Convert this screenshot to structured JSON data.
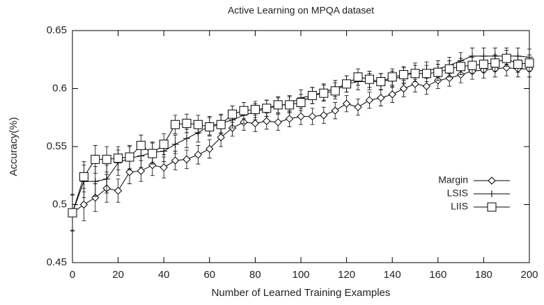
{
  "chart_data": {
    "type": "line",
    "title": "Active Learning on MPQA dataset",
    "x_label": "Number of Learned Training Examples",
    "y_label": "Accuracy(%)",
    "x": [
      0,
      5,
      10,
      15,
      20,
      25,
      30,
      35,
      40,
      45,
      50,
      55,
      60,
      65,
      70,
      75,
      80,
      85,
      90,
      95,
      100,
      105,
      110,
      115,
      120,
      125,
      130,
      135,
      140,
      145,
      150,
      155,
      160,
      165,
      170,
      175,
      180,
      185,
      190,
      195,
      200
    ],
    "xlim": [
      0,
      200
    ],
    "xticks": [
      0,
      20,
      40,
      60,
      80,
      100,
      120,
      140,
      160,
      180,
      200
    ],
    "ylim": [
      0.45,
      0.65
    ],
    "yticks": [
      0.45,
      0.5,
      0.55,
      0.6,
      0.65
    ],
    "legend": "lower right",
    "series": [
      {
        "name": "Margin",
        "color": "#000000",
        "marker": "diamond",
        "values": [
          0.493,
          0.5,
          0.506,
          0.514,
          0.512,
          0.528,
          0.529,
          0.534,
          0.532,
          0.538,
          0.539,
          0.543,
          0.548,
          0.558,
          0.566,
          0.571,
          0.57,
          0.572,
          0.571,
          0.574,
          0.576,
          0.576,
          0.577,
          0.581,
          0.587,
          0.584,
          0.59,
          0.592,
          0.595,
          0.6,
          0.604,
          0.602,
          0.607,
          0.609,
          0.612,
          0.615,
          0.616,
          0.617,
          0.618,
          0.617,
          0.617
        ],
        "errors": [
          0.015,
          0.014,
          0.012,
          0.012,
          0.01,
          0.01,
          0.009,
          0.009,
          0.009,
          0.008,
          0.008,
          0.008,
          0.008,
          0.008,
          0.007,
          0.007,
          0.007,
          0.007,
          0.007,
          0.007,
          0.007,
          0.007,
          0.007,
          0.007,
          0.007,
          0.007,
          0.007,
          0.007,
          0.007,
          0.007,
          0.007,
          0.007,
          0.007,
          0.007,
          0.007,
          0.007,
          0.007,
          0.007,
          0.007,
          0.007,
          0.007
        ]
      },
      {
        "name": "LSIS",
        "color": "#000000",
        "marker": "plus",
        "values": [
          0.493,
          0.52,
          0.52,
          0.522,
          0.536,
          0.54,
          0.542,
          0.545,
          0.546,
          0.552,
          0.557,
          0.562,
          0.568,
          0.57,
          0.573,
          0.577,
          0.58,
          0.583,
          0.585,
          0.587,
          0.592,
          0.594,
          0.597,
          0.6,
          0.604,
          0.606,
          0.606,
          0.606,
          0.608,
          0.611,
          0.615,
          0.616,
          0.617,
          0.62,
          0.624,
          0.628,
          0.628,
          0.628,
          0.628,
          0.628,
          0.627
        ],
        "errors": [
          0.016,
          0.014,
          0.013,
          0.012,
          0.011,
          0.01,
          0.01,
          0.009,
          0.009,
          0.008,
          0.008,
          0.008,
          0.008,
          0.008,
          0.007,
          0.007,
          0.007,
          0.007,
          0.007,
          0.007,
          0.007,
          0.007,
          0.007,
          0.007,
          0.007,
          0.007,
          0.007,
          0.007,
          0.007,
          0.007,
          0.007,
          0.007,
          0.007,
          0.007,
          0.007,
          0.007,
          0.007,
          0.007,
          0.007,
          0.007,
          0.007
        ]
      },
      {
        "name": "LIIS",
        "color": "#000000",
        "marker": "square",
        "values": [
          0.493,
          0.524,
          0.539,
          0.539,
          0.54,
          0.541,
          0.551,
          0.544,
          0.552,
          0.569,
          0.57,
          0.569,
          0.567,
          0.569,
          0.578,
          0.581,
          0.582,
          0.583,
          0.586,
          0.586,
          0.588,
          0.594,
          0.596,
          0.598,
          0.604,
          0.61,
          0.608,
          0.606,
          0.61,
          0.612,
          0.613,
          0.613,
          0.614,
          0.617,
          0.619,
          0.62,
          0.621,
          0.622,
          0.626,
          0.621,
          0.622
        ],
        "errors": [
          0.015,
          0.013,
          0.012,
          0.011,
          0.01,
          0.01,
          0.009,
          0.009,
          0.009,
          0.008,
          0.008,
          0.008,
          0.008,
          0.008,
          0.007,
          0.007,
          0.007,
          0.007,
          0.007,
          0.007,
          0.007,
          0.007,
          0.007,
          0.007,
          0.007,
          0.007,
          0.007,
          0.007,
          0.007,
          0.007,
          0.007,
          0.007,
          0.007,
          0.007,
          0.007,
          0.007,
          0.007,
          0.007,
          0.007,
          0.007,
          0.007
        ]
      }
    ]
  }
}
